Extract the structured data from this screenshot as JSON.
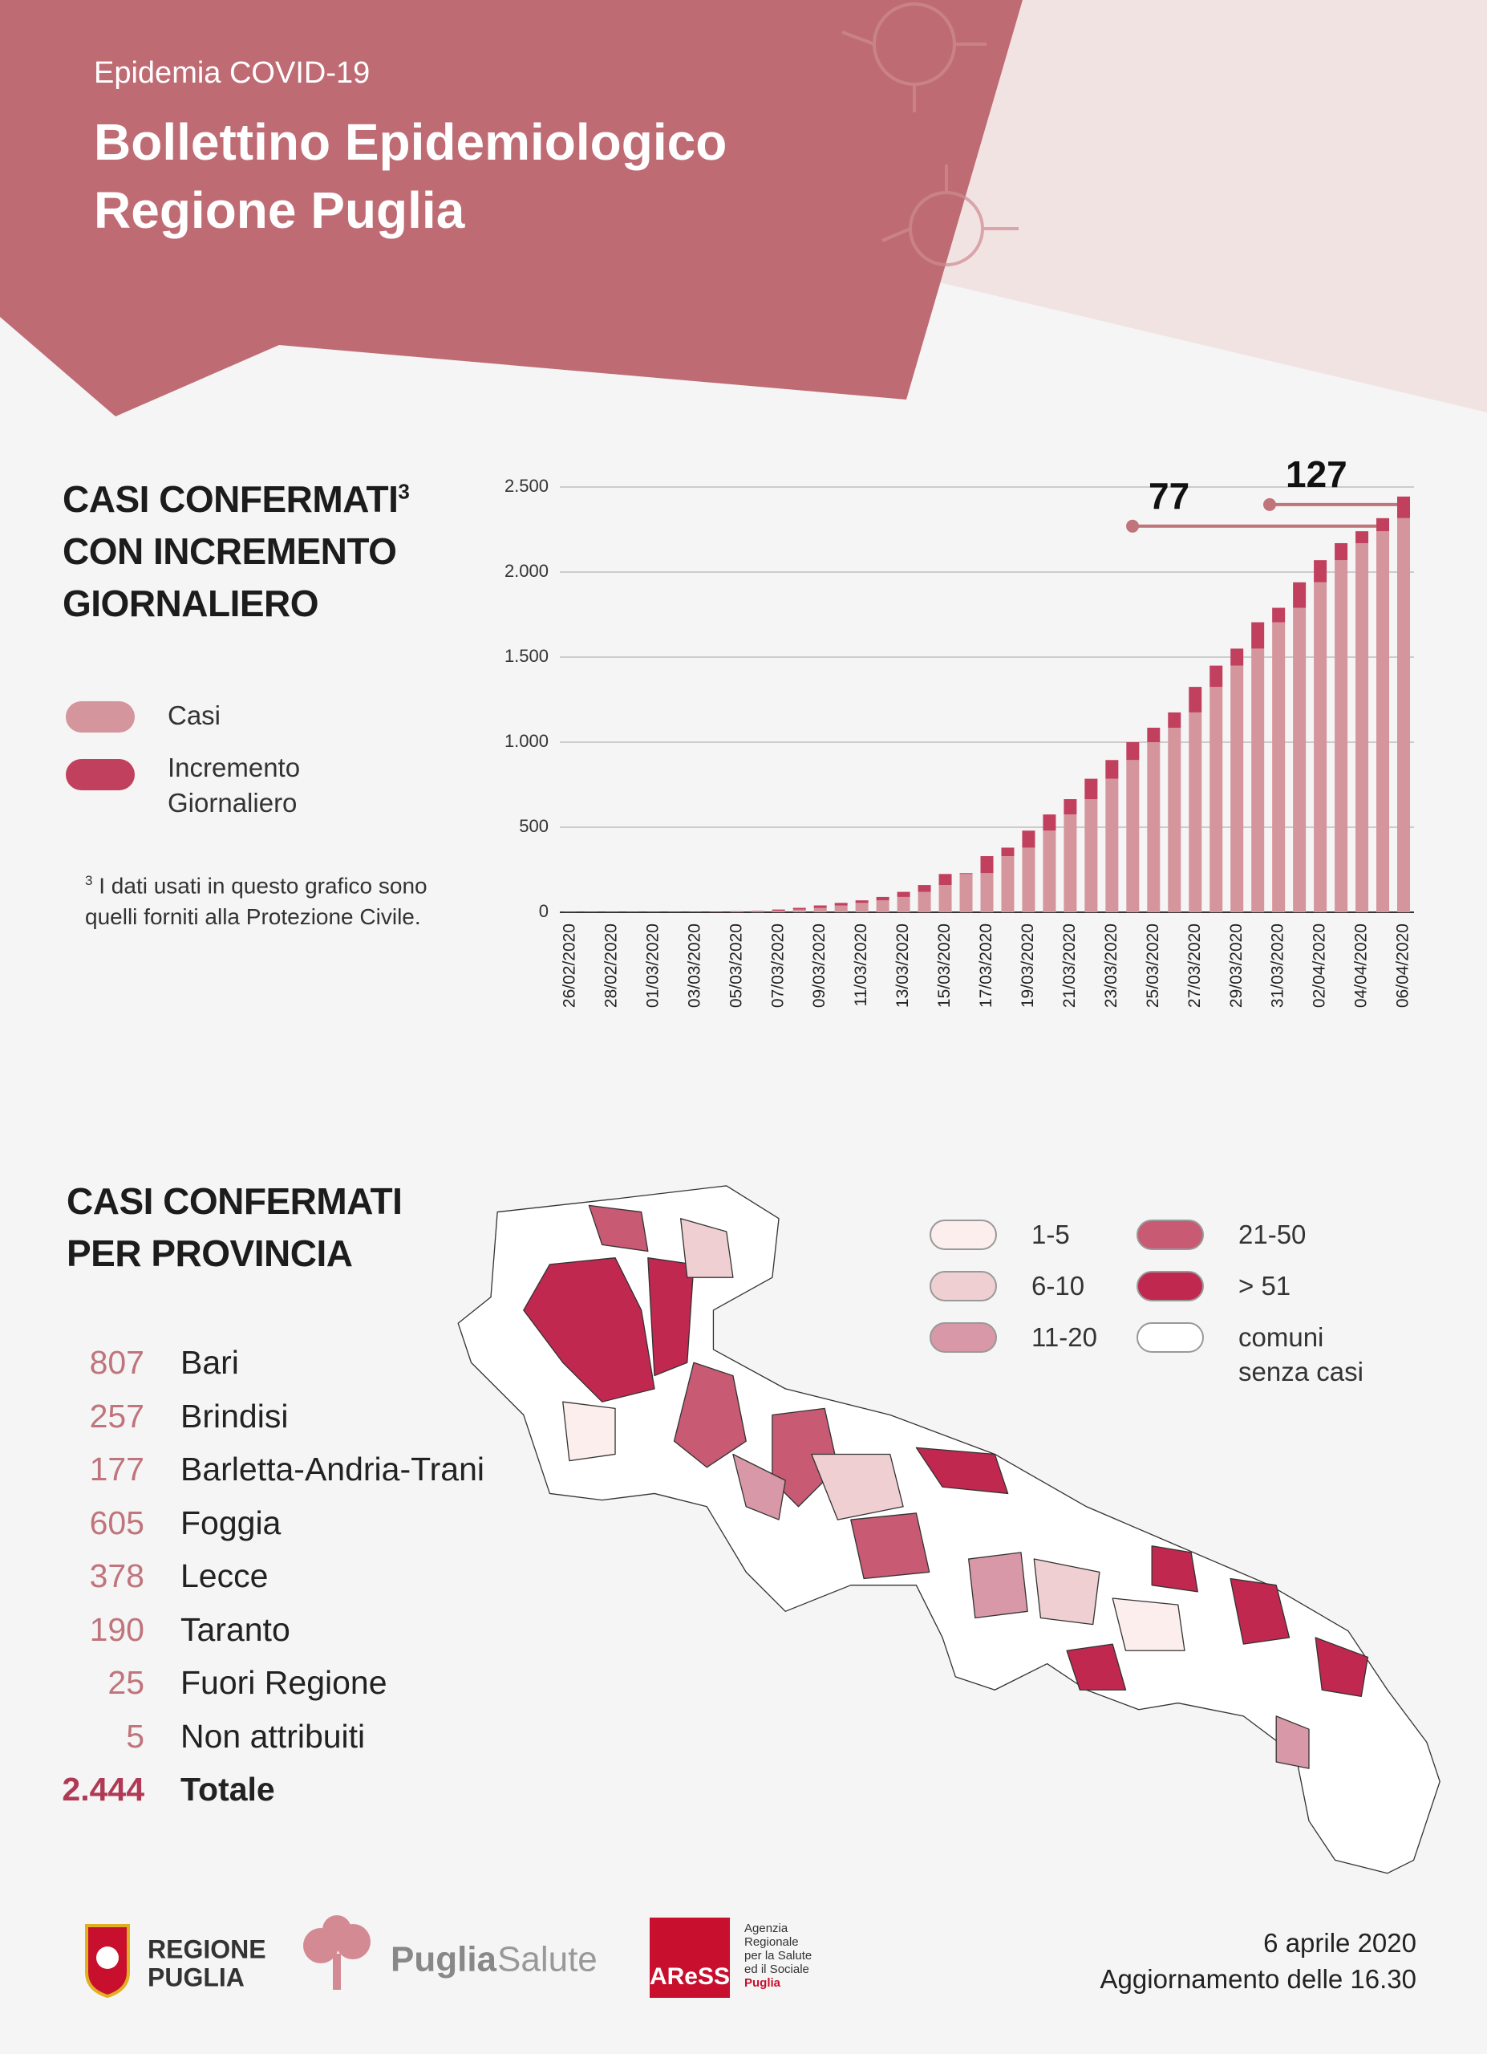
{
  "header": {
    "kicker": "Epidemia COVID-19",
    "title_lines": [
      "Bollettino Epidemiologico",
      "Regione Puglia"
    ]
  },
  "chart_section": {
    "title_lines": [
      "CASI CONFERMATI",
      "CON INCREMENTO",
      "GIORNALIERO"
    ],
    "title_marker": "3",
    "footnote_marker": "3",
    "footnote": "I dati usati in questo grafico sono quelli forniti alla Protezione Civile."
  },
  "chart_data": {
    "type": "bar",
    "stacked": true,
    "categories": [
      "26/02/2020",
      null,
      "28/02/2020",
      null,
      "01/03/2020",
      null,
      "03/03/2020",
      null,
      "05/03/2020",
      null,
      "07/03/2020",
      null,
      "09/03/2020",
      null,
      "11/03/2020",
      null,
      "13/03/2020",
      null,
      "15/03/2020",
      null,
      "17/03/2020",
      null,
      "19/03/2020",
      null,
      "21/03/2020",
      null,
      "23/03/2020",
      null,
      "25/03/2020",
      null,
      "27/03/2020",
      null,
      "29/03/2020",
      null,
      "31/03/2020",
      null,
      "02/04/2020",
      null,
      "04/04/2020",
      null,
      "06/04/2020"
    ],
    "series": [
      {
        "name": "Casi",
        "color": "#d4959d",
        "values": [
          1,
          1,
          1,
          1,
          1,
          1,
          1,
          1,
          3,
          6,
          9,
          16,
          26,
          40,
          55,
          70,
          90,
          120,
          160,
          225,
          230,
          330,
          380,
          480,
          575,
          665,
          785,
          895,
          1000,
          1085,
          1175,
          1325,
          1450,
          1550,
          1705,
          1790,
          1940,
          2070,
          2170,
          2240,
          2317
        ]
      },
      {
        "name": "Incremento Giornaliero",
        "color": "#c0405e",
        "values": [
          0,
          0,
          0,
          0,
          0,
          0,
          0,
          2,
          3,
          3,
          7,
          10,
          14,
          15,
          15,
          20,
          30,
          40,
          65,
          5,
          100,
          50,
          100,
          95,
          90,
          120,
          110,
          105,
          85,
          90,
          150,
          125,
          100,
          155,
          85,
          150,
          130,
          100,
          70,
          77,
          127
        ],
        "value_labels": [
          null,
          null,
          null,
          null,
          null,
          null,
          null,
          null,
          null,
          null,
          null,
          null,
          null,
          null,
          null,
          null,
          null,
          null,
          null,
          null,
          null,
          null,
          null,
          null,
          null,
          null,
          null,
          null,
          null,
          null,
          null,
          null,
          null,
          null,
          null,
          null,
          null,
          null,
          null,
          "77",
          "127"
        ]
      }
    ],
    "ylim": [
      0,
      2500
    ],
    "yticks": [
      0,
      500,
      {
        "value": 1000,
        "label": "1.000"
      },
      {
        "value": 1500,
        "label": "1.500"
      },
      {
        "value": 2000,
        "label": "2.000"
      },
      {
        "value": 2500,
        "label": "2.500"
      }
    ],
    "grid": true
  },
  "provinces": {
    "title_lines": [
      "CASI CONFERMATI",
      "PER PROVINCIA"
    ],
    "rows": [
      [
        "807",
        "Bari"
      ],
      [
        "257",
        "Brindisi"
      ],
      [
        "177",
        "Barletta-Andria-Trani"
      ],
      [
        "605",
        "Foggia"
      ],
      [
        "378",
        "Lecce"
      ],
      [
        "190",
        "Taranto"
      ],
      [
        "25",
        "Fuori Regione"
      ],
      [
        "5",
        "Non attribuiti"
      ],
      [
        "2.444",
        "Totale"
      ]
    ]
  },
  "map_legend": [
    {
      "label": "1-5",
      "color": "#fbeeec"
    },
    {
      "label": "6-10",
      "color": "#efcfd2"
    },
    {
      "label": "11-20",
      "color": "#d898a8"
    },
    {
      "label": "21-50",
      "color": "#c85a73"
    },
    {
      "label": "> 51",
      "color": "#c0284f"
    },
    {
      "label_lines": [
        "comuni",
        "senza casi"
      ],
      "color": "#ffffff"
    }
  ],
  "footer": {
    "date": "6 aprile 2020",
    "update": "Aggiornamento delle 16.30",
    "logos": {
      "regione": [
        "REGIONE",
        "PUGLIA"
      ],
      "puglia_salute": [
        "Puglia",
        "Salute"
      ],
      "aress": "AReSS",
      "aress_desc": [
        "Agenzia",
        "Regionale",
        "per la Salute",
        "ed il Sociale",
        "Puglia"
      ]
    }
  }
}
